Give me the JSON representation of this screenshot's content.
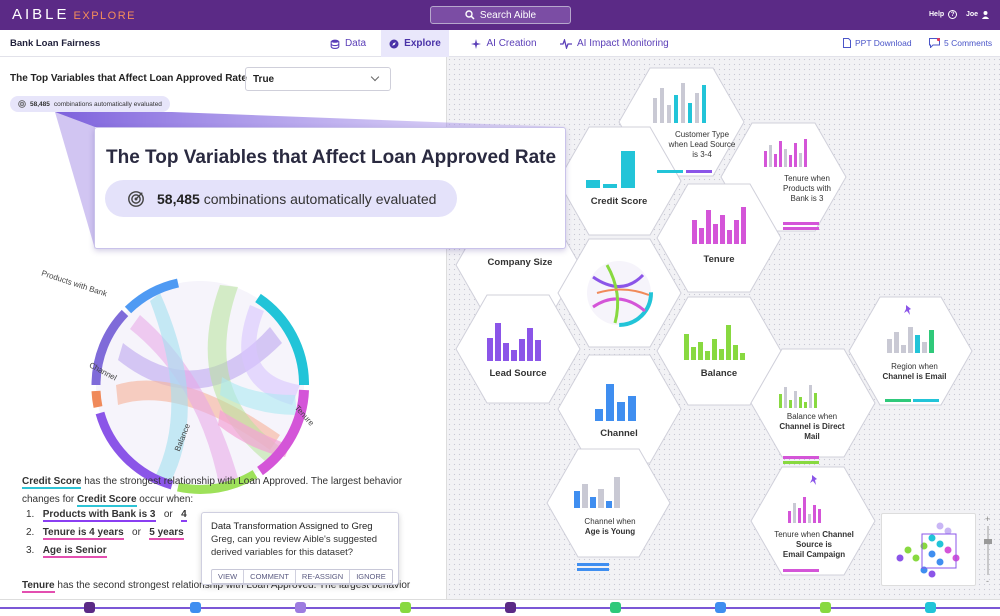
{
  "topbar": {
    "logo": "AIBLE",
    "logo_sub": "EXPLORE",
    "search_label": "Search Aible",
    "help_label": "Help",
    "help_icon": "question-icon",
    "user": "Joe"
  },
  "subbar": {
    "project": "Bank Loan Fairness",
    "tabs": [
      {
        "label": "Data",
        "icon": "database-icon"
      },
      {
        "label": "Explore",
        "icon": "compass-icon",
        "active": true
      },
      {
        "label": "AI Creation",
        "icon": "sparkle-icon"
      },
      {
        "label": "AI Impact Monitoring",
        "icon": "pulse-icon"
      }
    ],
    "ppt": "PPT Download",
    "comments": "5 Comments"
  },
  "left": {
    "question": "The Top Variables that Affect Loan Approved Rate",
    "select_value": "True",
    "combos_small": "combinations automatically evaluated",
    "combos_count": "58,485",
    "callout_title": "The Top Variables that Affect Loan Approved Rate",
    "callout_count": "58,485",
    "callout_text": "combinations automatically evaluated",
    "chord_labels": {
      "products": "Products with Bank",
      "channel": "Channel",
      "balance": "Balance",
      "tenure": "Tenure"
    },
    "desc": {
      "v1": "Credit Score",
      "t1": " has the strongest relationship with Loan Approved. The largest behavior changes for ",
      "v2": "Credit Score",
      "t2": " occur when:"
    },
    "list": [
      {
        "num": "1.",
        "a": "Products with Bank is 3",
        "or": "or",
        "b": "4"
      },
      {
        "num": "2.",
        "a": "Tenure is 4 years",
        "or": "or",
        "b": "5 years"
      },
      {
        "num": "3.",
        "a": "Age is Senior",
        "or": "",
        "b": ""
      }
    ],
    "desc2": {
      "v": "Tenure",
      "t": " has the second strongest relationship with Loan Approved. The largest behavior"
    }
  },
  "popup": {
    "title": "Data Transformation Assigned to Greg",
    "body": "Greg, can you review Aible's suggested derived variables for this dataset?",
    "actions": [
      "VIEW",
      "COMMENT",
      "RE-ASSIGN",
      "IGNORE"
    ]
  },
  "hexes": {
    "credit": "Credit Score",
    "company": "Company Size",
    "lead": "Lead Source",
    "channel": "Channel",
    "balance": "Balance",
    "tenure": "Tenure",
    "customer_type": "Customer Type",
    "customer_type_b1": "when Lead Source",
    "customer_type_b2": "is 3-4",
    "tenure_products": "Tenure when",
    "tenure_products_b1": "Products with",
    "tenure_products_b2": "Bank is 3",
    "region": "Region when",
    "region_b": "Channel is Email",
    "balance_channel": "Balance when",
    "balance_channel_b1": "Channel is Direct",
    "balance_channel_b2": "Mail",
    "channel_age": "Channel when",
    "channel_age_b": "Age is Young",
    "tenure_channel": "Tenure when",
    "tenure_channel_b1": "Channel",
    "tenure_channel_b2": "Source is",
    "tenure_channel_b3": "Email Campaign"
  },
  "colors": {
    "purple": "#5b2a86",
    "teal": "#22c4d8",
    "violet": "#8b55e8",
    "pink": "#d455d8",
    "green": "#88d940",
    "blue": "#3f8ef0",
    "grey": "#c9c9d4"
  }
}
